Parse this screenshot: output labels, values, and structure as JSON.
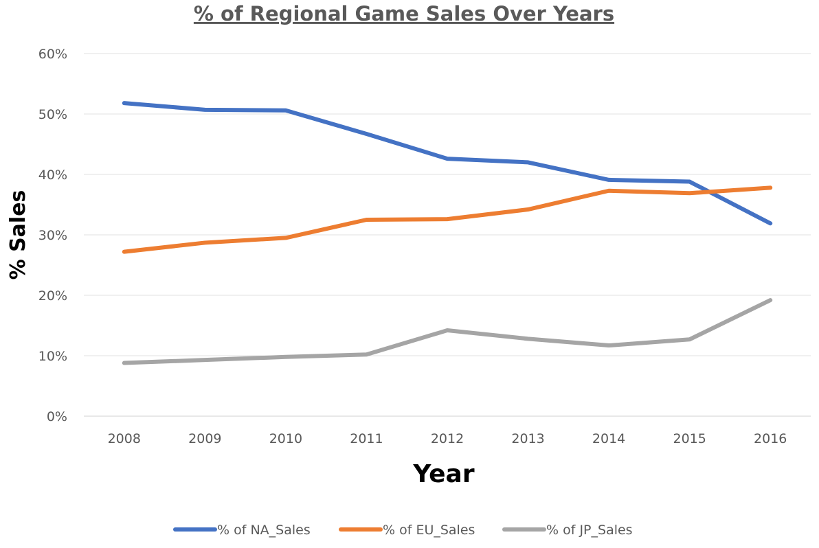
{
  "chart_data": {
    "type": "line",
    "title": "% of Regional Game Sales Over Years",
    "xlabel": "Year",
    "ylabel": "% Sales",
    "categories": [
      "2008",
      "2009",
      "2010",
      "2011",
      "2012",
      "2013",
      "2014",
      "2015",
      "2016"
    ],
    "ylim": [
      0,
      60
    ],
    "yticks": [
      "0%",
      "10%",
      "20%",
      "30%",
      "40%",
      "50%",
      "60%"
    ],
    "grid": true,
    "legend_position": "bottom",
    "series": [
      {
        "name": "% of NA_Sales",
        "color": "#4472C4",
        "values": [
          51.8,
          50.7,
          50.6,
          46.7,
          42.6,
          42.0,
          39.1,
          38.8,
          31.9
        ]
      },
      {
        "name": "% of EU_Sales",
        "color": "#ED7D31",
        "values": [
          27.2,
          28.7,
          29.5,
          32.5,
          32.6,
          34.2,
          37.3,
          36.9,
          37.8
        ]
      },
      {
        "name": "% of JP_Sales",
        "color": "#A5A5A5",
        "values": [
          8.8,
          9.3,
          9.8,
          10.2,
          14.2,
          12.8,
          11.7,
          12.7,
          19.2
        ]
      }
    ]
  }
}
